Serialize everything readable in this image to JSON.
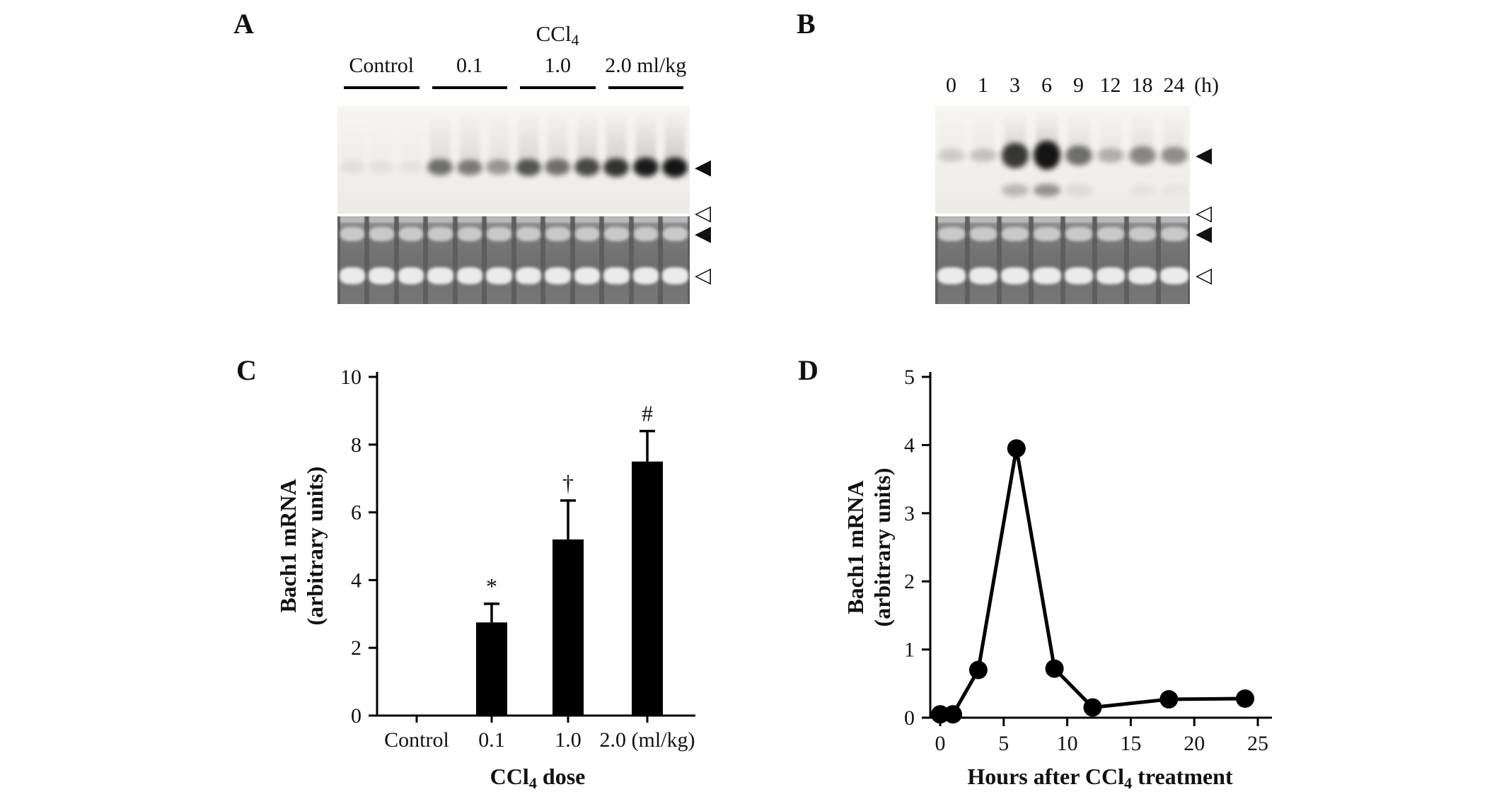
{
  "icons": {
    "filled_arrowhead": "◀",
    "open_arrowhead": "◁"
  },
  "panels": {
    "A": {
      "label": "A",
      "title_main": "CCl",
      "title_sub": "4",
      "groups": [
        {
          "label": "Control"
        },
        {
          "label": "0.1"
        },
        {
          "label": "1.0"
        },
        {
          "label": "2.0 ml/kg"
        }
      ],
      "blot_band_intensities": [
        0.07,
        0.06,
        0.05,
        0.55,
        0.5,
        0.38,
        0.68,
        0.55,
        0.72,
        0.82,
        0.92,
        1.0
      ],
      "gel_lane_count": 12
    },
    "B": {
      "label": "B",
      "time_labels": [
        "0",
        "1",
        "3",
        "6",
        "9",
        "12",
        "18",
        "24"
      ],
      "time_unit": "(h)",
      "blot_band_intensities": [
        0.15,
        0.2,
        0.8,
        1.0,
        0.55,
        0.28,
        0.45,
        0.42
      ],
      "blot_lower_band_intensities": [
        0,
        0,
        0.35,
        0.6,
        0.12,
        0,
        0.06,
        0.05
      ],
      "gel_lane_count": 8
    },
    "C": {
      "label": "C"
    },
    "D": {
      "label": "D"
    }
  },
  "chart_data": [
    {
      "id": "C",
      "type": "bar",
      "categories": [
        "Control",
        "0.1",
        "1.0",
        "2.0"
      ],
      "values": [
        0,
        2.75,
        5.2,
        7.5
      ],
      "errors": [
        0,
        0.55,
        1.15,
        0.9
      ],
      "annotations": [
        "",
        "*",
        "†",
        "#"
      ],
      "unit_suffix": "(ml/kg)",
      "ylabel_line1": "Bach1 mRNA",
      "ylabel_line2": "(arbitrary units)",
      "xlabel_prefix": "CCl",
      "xlabel_sub": "4",
      "xlabel_suffix": " dose",
      "ylim": [
        0,
        10
      ],
      "yticks": [
        0,
        2,
        4,
        6,
        8,
        10
      ]
    },
    {
      "id": "D",
      "type": "line",
      "x": [
        0,
        1,
        3,
        6,
        9,
        12,
        18,
        24
      ],
      "y": [
        0.05,
        0.05,
        0.7,
        3.95,
        0.72,
        0.15,
        0.27,
        0.28
      ],
      "ylabel_line1": "Bach1 mRNA",
      "ylabel_line2": "(arbitrary units)",
      "xlabel_prefix": "Hours after CCl",
      "xlabel_sub": "4",
      "xlabel_suffix": " treatment",
      "ylim": [
        0,
        5
      ],
      "yticks": [
        0,
        1,
        2,
        3,
        4,
        5
      ],
      "xlim": [
        0,
        25
      ],
      "xticks": [
        0,
        5,
        10,
        15,
        20,
        25
      ]
    }
  ]
}
